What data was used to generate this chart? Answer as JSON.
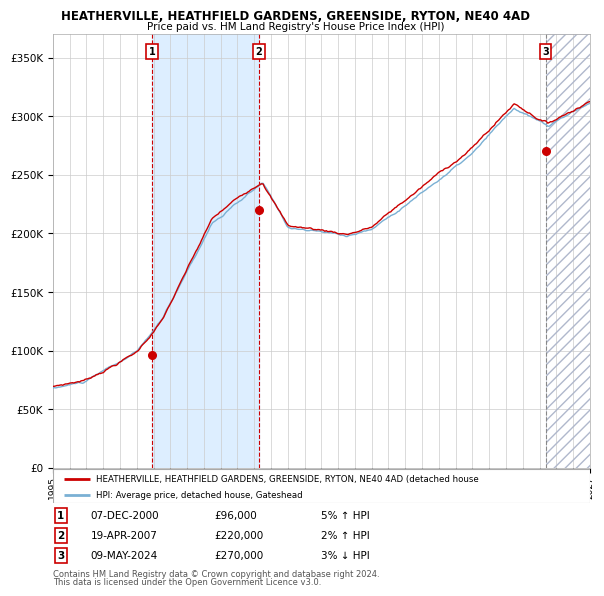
{
  "title": "HEATHERVILLE, HEATHFIELD GARDENS, GREENSIDE, RYTON, NE40 4AD",
  "subtitle": "Price paid vs. HM Land Registry's House Price Index (HPI)",
  "legend_line1": "HEATHERVILLE, HEATHFIELD GARDENS, GREENSIDE, RYTON, NE40 4AD (detached house",
  "legend_line2": "HPI: Average price, detached house, Gateshead",
  "footer1": "Contains HM Land Registry data © Crown copyright and database right 2024.",
  "footer2": "This data is licensed under the Open Government Licence v3.0.",
  "sale1_date": "07-DEC-2000",
  "sale1_price": "£96,000",
  "sale1_hpi": "5% ↑ HPI",
  "sale2_date": "19-APR-2007",
  "sale2_price": "£220,000",
  "sale2_hpi": "2% ↑ HPI",
  "sale3_date": "09-MAY-2024",
  "sale3_price": "£270,000",
  "sale3_hpi": "3% ↓ HPI",
  "ylim": [
    0,
    370000
  ],
  "yticks": [
    0,
    50000,
    100000,
    150000,
    200000,
    250000,
    300000,
    350000
  ],
  "red_color": "#cc0000",
  "blue_color": "#7ab0d4",
  "shade_color": "#ddeeff",
  "grid_color": "#cccccc",
  "bg_color": "#ffffff",
  "start_year": 1995.0,
  "end_year": 2027.0,
  "sale1_t": 2000.92,
  "sale1_v": 96000,
  "sale2_t": 2007.29,
  "sale2_v": 220000,
  "sale3_t": 2024.36,
  "sale3_v": 270000
}
